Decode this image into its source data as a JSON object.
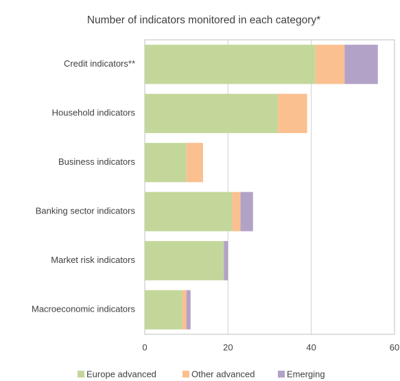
{
  "chart_data": {
    "type": "stacked_barh",
    "title": "Number of indicators monitored in each category*",
    "categories": [
      "Credit indicators**",
      "Household indicators",
      "Business indicators",
      "Banking sector indicators",
      "Market risk indicators",
      "Macroeconomic indicators"
    ],
    "series": [
      {
        "name": "Europe advanced",
        "color": "#c4d79b",
        "values": [
          41,
          32,
          10,
          21,
          19,
          9
        ]
      },
      {
        "name": "Other advanced",
        "color": "#fac090",
        "values": [
          7,
          7,
          4,
          2,
          0,
          1
        ]
      },
      {
        "name": "Emerging",
        "color": "#b3a2c7",
        "values": [
          8,
          0,
          0,
          3,
          1,
          1
        ]
      }
    ],
    "xlim": [
      0,
      60
    ],
    "xticks": [
      0,
      20,
      40,
      60
    ],
    "grid": true,
    "legend": "bottom"
  }
}
